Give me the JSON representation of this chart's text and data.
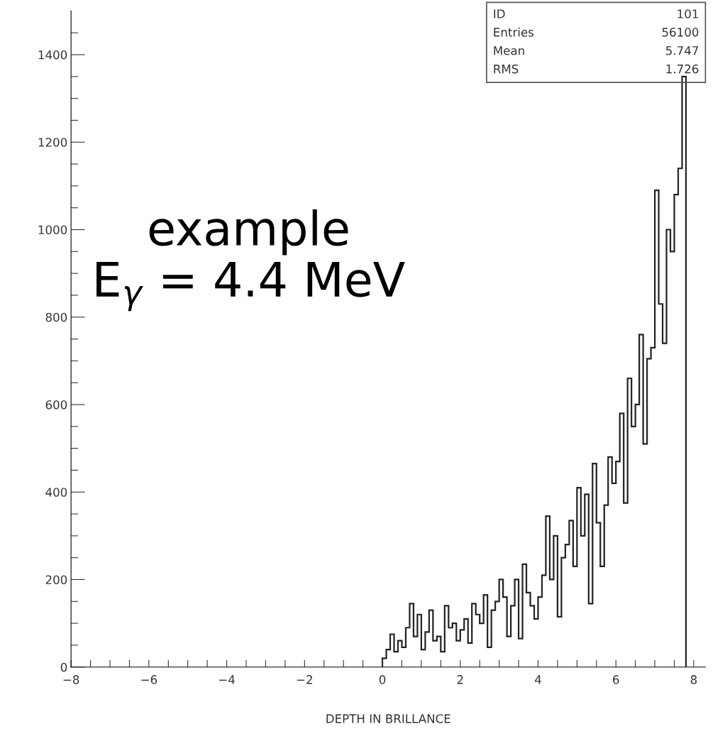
{
  "chart_data": {
    "type": "histogram",
    "xlabel": "DEPTH IN BRILLANCE",
    "annotations": [
      "example\nE$_{γ}$ = 4.4 MeV",
      "ID 101",
      "Entries 56100",
      "Mean 5.747",
      "RMS 1.726"
    ],
    "bins": [
      0.0,
      0.1,
      0.2,
      0.3,
      0.4,
      0.5,
      0.6,
      0.7,
      0.8,
      0.9,
      1.0,
      1.1,
      1.2,
      1.3,
      1.4,
      1.5,
      1.6,
      1.7,
      1.8,
      1.9,
      2.0,
      2.1,
      2.2,
      2.3,
      2.4,
      2.5,
      2.6,
      2.7,
      2.8,
      2.9,
      3.0,
      3.1,
      3.2,
      3.3,
      3.4,
      3.5,
      3.6,
      3.7,
      3.8,
      3.9,
      4.0,
      4.1,
      4.2,
      4.3,
      4.4,
      4.5,
      4.6,
      4.7,
      4.8,
      4.9,
      5.0,
      5.1,
      5.2,
      5.3,
      5.4,
      5.5,
      5.6,
      5.7,
      5.8,
      5.9,
      6.0,
      6.1,
      6.2,
      6.3,
      6.4,
      6.5,
      6.6,
      6.7,
      6.8,
      6.9,
      7.0,
      7.1,
      7.2,
      7.3,
      7.4,
      7.5,
      7.6,
      7.7,
      7.8
    ],
    "values": [
      20,
      40,
      75,
      35,
      60,
      45,
      90,
      145,
      70,
      120,
      40,
      80,
      130,
      60,
      70,
      35,
      140,
      90,
      100,
      60,
      85,
      110,
      55,
      145,
      120,
      100,
      165,
      45,
      130,
      150,
      200,
      160,
      70,
      140,
      200,
      65,
      235,
      170,
      140,
      110,
      160,
      210,
      345,
      200,
      300,
      115,
      250,
      280,
      335,
      230,
      410,
      300,
      395,
      145,
      465,
      330,
      230,
      370,
      480,
      420,
      470,
      580,
      375,
      660,
      550,
      600,
      760,
      510,
      705,
      730,
      1090,
      830,
      740,
      1000,
      950,
      1080,
      1140,
      1350
    ],
    "color": "#222222",
    "xlim": [
      -8,
      8.3
    ],
    "xticks": [
      -8,
      {
        "value": -7.5,
        "label": null
      },
      {
        "value": -7,
        "label": null
      },
      {
        "value": -6.5,
        "label": null
      },
      -6,
      {
        "value": -5.5,
        "label": null
      },
      {
        "value": -5,
        "label": null
      },
      {
        "value": -4.5,
        "label": null
      },
      -4,
      {
        "value": -3.5,
        "label": null
      },
      {
        "value": -3,
        "label": null
      },
      {
        "value": -2.5,
        "label": null
      },
      -2,
      {
        "value": -1.5,
        "label": null
      },
      {
        "value": -1,
        "label": null
      },
      {
        "value": -0.5,
        "label": null
      },
      0,
      {
        "value": 0.5,
        "label": null
      },
      {
        "value": 1,
        "label": null
      },
      {
        "value": 1.5,
        "label": null
      },
      2,
      {
        "value": 2.5,
        "label": null
      },
      {
        "value": 3,
        "label": null
      },
      {
        "value": 3.5,
        "label": null
      },
      4,
      {
        "value": 4.5,
        "label": null
      },
      {
        "value": 5,
        "label": null
      },
      {
        "value": 5.5,
        "label": null
      },
      6,
      {
        "value": 6.5,
        "label": null
      },
      {
        "value": 7,
        "label": null
      },
      {
        "value": 7.5,
        "label": null
      },
      8
    ],
    "ylim": [
      0,
      1500
    ],
    "yticks": [
      0,
      {
        "value": 50,
        "label": null
      },
      {
        "value": 100,
        "label": null
      },
      {
        "value": 150,
        "label": null
      },
      200,
      {
        "value": 250,
        "label": null
      },
      {
        "value": 300,
        "label": null
      },
      {
        "value": 350,
        "label": null
      },
      400,
      {
        "value": 450,
        "label": null
      },
      {
        "value": 500,
        "label": null
      },
      {
        "value": 550,
        "label": null
      },
      600,
      {
        "value": 650,
        "label": null
      },
      {
        "value": 700,
        "label": null
      },
      {
        "value": 750,
        "label": null
      },
      800,
      {
        "value": 850,
        "label": null
      },
      {
        "value": 900,
        "label": null
      },
      {
        "value": 950,
        "label": null
      },
      1000,
      {
        "value": 1050,
        "label": null
      },
      {
        "value": 1100,
        "label": null
      },
      {
        "value": 1150,
        "label": null
      },
      1200,
      {
        "value": 1250,
        "label": null
      },
      {
        "value": 1300,
        "label": null
      },
      {
        "value": 1350,
        "label": null
      },
      1400,
      {
        "value": 1450,
        "label": null
      }
    ],
    "grid": false,
    "legend": false
  }
}
